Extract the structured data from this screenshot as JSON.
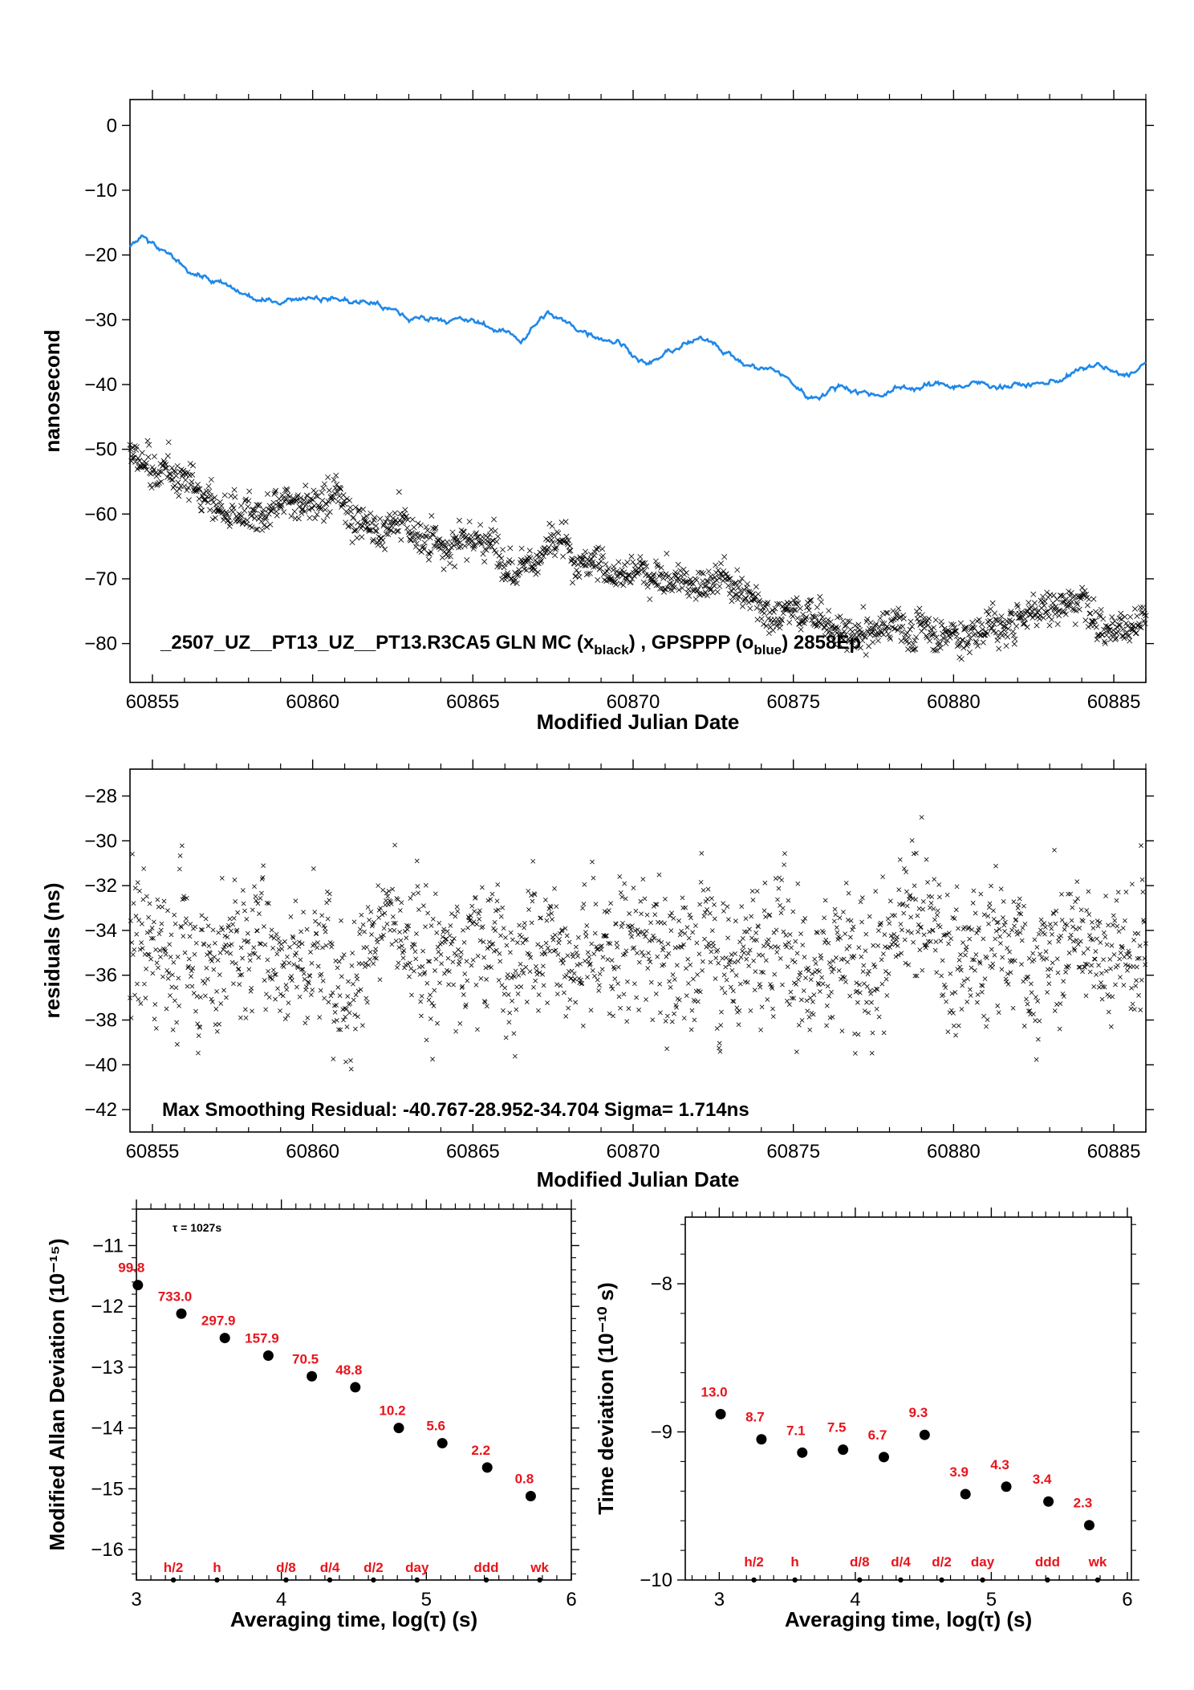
{
  "chart_data": [
    {
      "type": "scatter",
      "xlabel": "Modified Julian Date",
      "ylabel": "nanosecond",
      "xlim": [
        60854.3,
        60886.0
      ],
      "ylim": [
        -86,
        4
      ],
      "x_ticks": [
        60855,
        60860,
        60865,
        60870,
        60875,
        60880,
        60885
      ],
      "y_ticks": [
        0,
        -10,
        -20,
        -30,
        -40,
        -50,
        -60,
        -70,
        -80
      ],
      "annotation": "_2507_UZ__PT13_UZ__PT13.R3CA5     GLN MC (x_black) ,  GPSPPP (o_blue)  2858Ep",
      "series": [
        {
          "name": "GLN MC",
          "color": "#000000",
          "marker": "x",
          "trend_x": [
            60854.3,
            60855.5,
            60857,
            60858.5,
            60860,
            60861.5,
            60863,
            60864.5,
            60866,
            60867.3,
            60868.5,
            60870,
            60871.5,
            60873,
            60874.5,
            60876,
            60877.5,
            60879,
            60880.5,
            60882,
            60883.5,
            60885,
            60886
          ],
          "trend_y": [
            -51,
            -55,
            -58.5,
            -61,
            -61,
            -62,
            -64,
            -65.5,
            -66,
            -62,
            -66,
            -69,
            -70,
            -70,
            -72,
            -75,
            -78,
            -76,
            -77.5,
            -74,
            -72,
            -71,
            -73
          ]
        },
        {
          "name": "GPSPPP",
          "color": "#1f88e8",
          "marker": "o",
          "trend_x": [
            60854.3,
            60854.7,
            60855.5,
            60856.5,
            60857.5,
            60858.5,
            60860,
            60861,
            60862,
            60863,
            60864,
            60865.5,
            60866.5,
            60867.3,
            60868,
            60869.5,
            60870.5,
            60871.5,
            60872.5,
            60873.5,
            60874.5,
            60875.5,
            60876.5,
            60877.5,
            60878.5,
            60880,
            60881.5,
            60882.8,
            60884.5,
            60885.2,
            60886
          ],
          "trend_y": [
            -18.5,
            -17.5,
            -20.5,
            -23,
            -25.5,
            -27.5,
            -26,
            -27,
            -27.5,
            -30,
            -29.5,
            -31,
            -33,
            -29,
            -31,
            -33,
            -37,
            -34,
            -33,
            -37,
            -38,
            -42,
            -40,
            -41.5,
            -40.5,
            -40,
            -40,
            -40,
            -37,
            -39,
            -37
          ]
        }
      ]
    },
    {
      "type": "scatter",
      "xlabel": "Modified Julian Date",
      "ylabel": "residuals (ns)",
      "xlim": [
        60854.3,
        60886.0
      ],
      "ylim": [
        -43,
        -26.8
      ],
      "x_ticks": [
        60855,
        60860,
        60865,
        60870,
        60875,
        60880,
        60885
      ],
      "y_ticks": [
        -28,
        -30,
        -32,
        -34,
        -36,
        -38,
        -40,
        -42
      ],
      "annotation": "Max Smoothing Residual: -40.767-28.952-34.704  Sigma= 1.714ns",
      "series": [
        {
          "color": "#000000",
          "marker": "x",
          "center": -34.7,
          "sigma": 1.714,
          "min": -40.767,
          "max": -28.952
        }
      ]
    },
    {
      "type": "scatter",
      "xlabel": "Averaging time, log(τ) (s)",
      "ylabel": "Modified Allan Deviation (10⁻¹⁵)",
      "xlim": [
        3,
        6
      ],
      "ylim": [
        -16.5,
        -10.4
      ],
      "x_ticks": [
        3,
        4,
        5,
        6
      ],
      "y_ticks": [
        -11,
        -12,
        -13,
        -14,
        -15,
        -16
      ],
      "tau_note": "τ = 1027s",
      "x": [
        3.01,
        3.31,
        3.61,
        3.91,
        4.21,
        4.51,
        4.81,
        5.11,
        5.42,
        5.72
      ],
      "y": [
        -11.65,
        -12.12,
        -12.52,
        -12.81,
        -13.15,
        -13.33,
        -14.0,
        -14.25,
        -14.65,
        -15.12
      ],
      "point_labels": [
        "99.8",
        "733.0",
        "297.9",
        "157.9",
        "70.5",
        "48.8",
        "10.2",
        "5.6",
        "2.2",
        "0.8"
      ],
      "period_labels": [
        "h/2",
        "h",
        "d/8",
        "d/4",
        "d/2",
        "day",
        "ddd",
        "wk"
      ],
      "period_x": [
        3.255,
        3.556,
        4.032,
        4.334,
        4.635,
        4.936,
        5.413,
        5.782
      ]
    },
    {
      "type": "scatter",
      "xlabel": "Averaging time, log(τ) (s)",
      "ylabel": "Time deviation (10⁻¹⁰ s)",
      "xlim": [
        2.75,
        6.03
      ],
      "ylim": [
        -10.0,
        -7.55
      ],
      "x_ticks": [
        3,
        4,
        5,
        6
      ],
      "y_ticks": [
        -8,
        -9,
        -10
      ],
      "x": [
        3.01,
        3.31,
        3.61,
        3.91,
        4.21,
        4.51,
        4.81,
        5.11,
        5.42,
        5.72
      ],
      "y": [
        -8.88,
        -9.05,
        -9.14,
        -9.12,
        -9.17,
        -9.02,
        -9.42,
        -9.37,
        -9.47,
        -9.63
      ],
      "point_labels": [
        "13.0",
        "8.7",
        "7.1",
        "7.5",
        "6.7",
        "9.3",
        "3.9",
        "4.3",
        "3.4",
        "2.3"
      ],
      "period_labels": [
        "h/2",
        "h",
        "d/8",
        "d/4",
        "d/2",
        "day",
        "ddd",
        "wk"
      ],
      "period_x": [
        3.255,
        3.556,
        4.032,
        4.334,
        4.635,
        4.936,
        5.413,
        5.782
      ]
    }
  ]
}
